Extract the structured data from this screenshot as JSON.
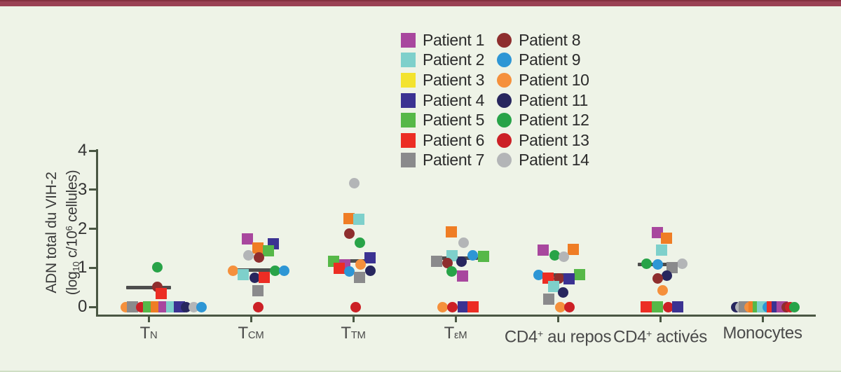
{
  "page": {
    "background": "#eef3e7",
    "top_bar_color": "#9a4154",
    "bottom_line_color": "#cfdec4",
    "axis_color": "#4a5743",
    "median_bar_color": "#4d4d4d"
  },
  "chart_data": {
    "type": "scatter",
    "title": "",
    "ylabel": {
      "line1": "ADN total du VIH-2",
      "line2": [
        {
          "t": "(log"
        },
        {
          "t": "10",
          "style": "sub"
        },
        {
          "t": " c/10"
        },
        {
          "t": "6",
          "style": "sup"
        },
        {
          "t": " cellules)"
        }
      ],
      "plain": "ADN total du VIH-2 (log10 c/10^6 cellules)"
    },
    "ylim": [
      0,
      4
    ],
    "yticks": [
      0,
      1,
      2,
      3,
      4
    ],
    "grid": false,
    "legend_position": "top-center",
    "categories": [
      {
        "name": "TN",
        "segments": [
          {
            "t": "T"
          },
          {
            "t": "N",
            "style": "small"
          }
        ]
      },
      {
        "name": "TCM",
        "segments": [
          {
            "t": "T"
          },
          {
            "t": "CM",
            "style": "small"
          }
        ]
      },
      {
        "name": "TTM",
        "segments": [
          {
            "t": "T"
          },
          {
            "t": "TM",
            "style": "small"
          }
        ]
      },
      {
        "name": "TεM",
        "segments": [
          {
            "t": "T"
          },
          {
            "t": "εM",
            "style": "small"
          }
        ]
      },
      {
        "name": "CD4+ au repos",
        "segments": [
          {
            "t": "CD4"
          },
          {
            "t": "+",
            "style": "sup"
          },
          {
            "t": " au repos"
          }
        ]
      },
      {
        "name": "CD4+ activés",
        "segments": [
          {
            "t": "CD4"
          },
          {
            "t": "+",
            "style": "sup"
          },
          {
            "t": " activés"
          }
        ]
      },
      {
        "name": "Monocytes",
        "segments": [
          {
            "t": "Monocytes"
          }
        ]
      }
    ],
    "medians": [
      0.5,
      0.95,
      1.17,
      1.24,
      0.82,
      1.09,
      null
    ],
    "patients": [
      {
        "id": 1,
        "label": "Patient 1",
        "shape": "square",
        "color": "#a8479e"
      },
      {
        "id": 2,
        "label": "Patient 2",
        "shape": "square",
        "color": "#7ed0cb"
      },
      {
        "id": 3,
        "label": "Patient 3",
        "shape": "square",
        "color": "#f3e32e",
        "plot_color": "#ef7d25"
      },
      {
        "id": 4,
        "label": "Patient 4",
        "shape": "square",
        "color": "#3b3292"
      },
      {
        "id": 5,
        "label": "Patient 5",
        "shape": "square",
        "color": "#56b848"
      },
      {
        "id": 6,
        "label": "Patient 6",
        "shape": "square",
        "color": "#ec2d24"
      },
      {
        "id": 7,
        "label": "Patient 7",
        "shape": "square",
        "color": "#8a8a8c"
      },
      {
        "id": 8,
        "label": "Patient 8",
        "shape": "circle",
        "color": "#8e2e2e"
      },
      {
        "id": 9,
        "label": "Patient 9",
        "shape": "circle",
        "color": "#2d96d5"
      },
      {
        "id": 10,
        "label": "Patient 10",
        "shape": "circle",
        "color": "#f5903c"
      },
      {
        "id": 11,
        "label": "Patient 11",
        "shape": "circle",
        "color": "#27265e"
      },
      {
        "id": 12,
        "label": "Patient 12",
        "shape": "circle",
        "color": "#28a348"
      },
      {
        "id": 13,
        "label": "Patient 13",
        "shape": "circle",
        "color": "#cc2026"
      },
      {
        "id": 14,
        "label": "Patient 14",
        "shape": "circle",
        "color": "#b3b5b7"
      }
    ],
    "points": [
      [
        {
          "p": 12,
          "v": 1.02,
          "dx": 12
        },
        {
          "p": 8,
          "v": 0.52,
          "dx": 12
        },
        {
          "p": 6,
          "v": 0.34,
          "dx": 18
        },
        {
          "p": 10,
          "v": 0,
          "dx": -33
        },
        {
          "p": 7,
          "v": 0,
          "dx": -23
        },
        {
          "p": 13,
          "v": 0,
          "dx": -11
        },
        {
          "p": 5,
          "v": 0,
          "dx": 0
        },
        {
          "p": 3,
          "v": 0,
          "dx": 11
        },
        {
          "p": 1,
          "v": 0,
          "dx": 22
        },
        {
          "p": 2,
          "v": 0,
          "dx": 33
        },
        {
          "p": 4,
          "v": 0,
          "dx": 44
        },
        {
          "p": 11,
          "v": 0,
          "dx": 53
        },
        {
          "p": 14,
          "v": 0,
          "dx": 64
        },
        {
          "p": 9,
          "v": 0,
          "dx": 75
        }
      ],
      [
        {
          "p": 1,
          "v": 1.74,
          "dx": -5
        },
        {
          "p": 4,
          "v": 1.62,
          "dx": 32
        },
        {
          "p": 3,
          "v": 1.51,
          "dx": 10
        },
        {
          "p": 5,
          "v": 1.43,
          "dx": 25
        },
        {
          "p": 14,
          "v": 1.31,
          "dx": -4
        },
        {
          "p": 8,
          "v": 1.26,
          "dx": 11
        },
        {
          "p": 10,
          "v": 0.93,
          "dx": -26
        },
        {
          "p": 12,
          "v": 0.93,
          "dx": 34
        },
        {
          "p": 9,
          "v": 0.93,
          "dx": 47
        },
        {
          "p": 2,
          "v": 0.83,
          "dx": -11
        },
        {
          "p": 11,
          "v": 0.75,
          "dx": 5
        },
        {
          "p": 6,
          "v": 0.75,
          "dx": 19
        },
        {
          "p": 7,
          "v": 0.41,
          "dx": 10
        },
        {
          "p": 13,
          "v": 0,
          "dx": 10
        }
      ],
      [
        {
          "p": 14,
          "v": 3.16,
          "dx": 1
        },
        {
          "p": 3,
          "v": 2.26,
          "dx": -6
        },
        {
          "p": 2,
          "v": 2.24,
          "dx": 8
        },
        {
          "p": 8,
          "v": 1.88,
          "dx": -6
        },
        {
          "p": 12,
          "v": 1.65,
          "dx": 9
        },
        {
          "p": 4,
          "v": 1.26,
          "dx": 24
        },
        {
          "p": 5,
          "v": 1.17,
          "dx": -28
        },
        {
          "p": 10,
          "v": 1.09,
          "dx": 10
        },
        {
          "p": 1,
          "v": 1.08,
          "dx": -12
        },
        {
          "p": 6,
          "v": 0.99,
          "dx": -20
        },
        {
          "p": 11,
          "v": 0.93,
          "dx": 24
        },
        {
          "p": 9,
          "v": 0.9,
          "dx": -6
        },
        {
          "p": 7,
          "v": 0.75,
          "dx": 9
        },
        {
          "p": 13,
          "v": 0,
          "dx": 3
        }
      ],
      [
        {
          "p": 3,
          "v": 1.92,
          "dx": -6
        },
        {
          "p": 14,
          "v": 1.65,
          "dx": 11
        },
        {
          "p": 2,
          "v": 1.31,
          "dx": -5
        },
        {
          "p": 9,
          "v": 1.31,
          "dx": 24
        },
        {
          "p": 5,
          "v": 1.29,
          "dx": 40
        },
        {
          "p": 7,
          "v": 1.17,
          "dx": -27
        },
        {
          "p": 11,
          "v": 1.15,
          "dx": 8
        },
        {
          "p": 8,
          "v": 1.13,
          "dx": -12
        },
        {
          "p": 12,
          "v": 0.91,
          "dx": -6
        },
        {
          "p": 1,
          "v": 0.79,
          "dx": 10
        },
        {
          "p": 10,
          "v": 0,
          "dx": -19
        },
        {
          "p": 13,
          "v": 0,
          "dx": -5
        },
        {
          "p": 4,
          "v": 0,
          "dx": 11
        },
        {
          "p": 6,
          "v": 0,
          "dx": 25
        }
      ],
      [
        {
          "p": 3,
          "v": 1.47,
          "dx": 22
        },
        {
          "p": 1,
          "v": 1.45,
          "dx": -21
        },
        {
          "p": 12,
          "v": 1.31,
          "dx": -5
        },
        {
          "p": 14,
          "v": 1.29,
          "dx": 8
        },
        {
          "p": 9,
          "v": 0.82,
          "dx": -28
        },
        {
          "p": 5,
          "v": 0.82,
          "dx": 31
        },
        {
          "p": 6,
          "v": 0.74,
          "dx": -14
        },
        {
          "p": 8,
          "v": 0.72,
          "dx": 1
        },
        {
          "p": 4,
          "v": 0.72,
          "dx": 16
        },
        {
          "p": 2,
          "v": 0.52,
          "dx": -6
        },
        {
          "p": 11,
          "v": 0.37,
          "dx": 7
        },
        {
          "p": 7,
          "v": 0.2,
          "dx": -13
        },
        {
          "p": 10,
          "v": 0,
          "dx": 3
        },
        {
          "p": 13,
          "v": 0,
          "dx": 16
        }
      ],
      [
        {
          "p": 1,
          "v": 1.9,
          "dx": -4
        },
        {
          "p": 3,
          "v": 1.76,
          "dx": 9
        },
        {
          "p": 2,
          "v": 1.45,
          "dx": 2
        },
        {
          "p": 12,
          "v": 1.11,
          "dx": -20
        },
        {
          "p": 14,
          "v": 1.11,
          "dx": 31
        },
        {
          "p": 9,
          "v": 1.08,
          "dx": -4
        },
        {
          "p": 7,
          "v": 1.0,
          "dx": 17
        },
        {
          "p": 11,
          "v": 0.79,
          "dx": 9
        },
        {
          "p": 8,
          "v": 0.72,
          "dx": -4
        },
        {
          "p": 10,
          "v": 0.43,
          "dx": 3
        },
        {
          "p": 6,
          "v": 0,
          "dx": -20
        },
        {
          "p": 5,
          "v": 0,
          "dx": -4
        },
        {
          "p": 13,
          "v": 0,
          "dx": 11
        },
        {
          "p": 4,
          "v": 0,
          "dx": 25
        }
      ],
      [
        {
          "p": 11,
          "v": 0,
          "dx": -38
        },
        {
          "p": 14,
          "v": 0,
          "dx": -32
        },
        {
          "p": 7,
          "v": 0,
          "dx": -26
        },
        {
          "p": 10,
          "v": 0,
          "dx": -19
        },
        {
          "p": 3,
          "v": 0,
          "dx": -12
        },
        {
          "p": 5,
          "v": 0,
          "dx": -6
        },
        {
          "p": 2,
          "v": 0,
          "dx": 0
        },
        {
          "p": 9,
          "v": 0,
          "dx": 7
        },
        {
          "p": 6,
          "v": 0,
          "dx": 14
        },
        {
          "p": 4,
          "v": 0,
          "dx": 21
        },
        {
          "p": 1,
          "v": 0,
          "dx": 28
        },
        {
          "p": 8,
          "v": 0,
          "dx": 34
        },
        {
          "p": 13,
          "v": 0,
          "dx": 39
        },
        {
          "p": 12,
          "v": 0,
          "dx": 45
        }
      ]
    ]
  }
}
